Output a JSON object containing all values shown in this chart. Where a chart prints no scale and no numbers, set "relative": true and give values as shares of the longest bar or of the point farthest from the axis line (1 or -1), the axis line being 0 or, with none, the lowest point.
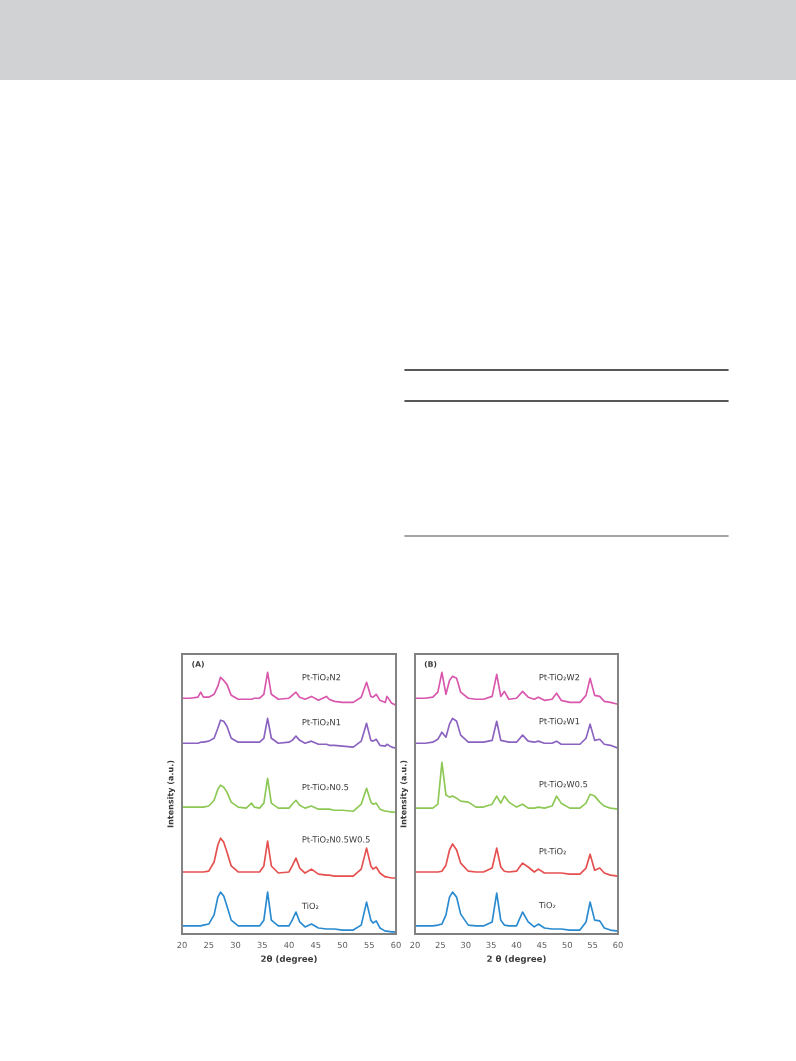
{
  "chart_data": [
    {
      "type": "line",
      "title": "(A)",
      "xlabel": "2θ (degree)",
      "ylabel": "Intensity (a.u.)",
      "relative": true,
      "x": [
        20,
        21.5,
        23,
        23.5,
        24,
        25,
        26,
        26.7,
        27.2,
        27.8,
        28.4,
        29.2,
        30.5,
        32,
        33,
        33.5,
        34.5,
        35.3,
        36,
        36.7,
        38,
        40,
        40.6,
        41.3,
        42,
        43,
        44.2,
        45.5,
        47,
        47.5,
        48.5,
        50,
        52,
        53.5,
        54.5,
        55.3,
        55.7,
        56.3,
        57,
        58,
        58.3,
        59.2,
        60
      ],
      "xlim": [
        20,
        60
      ],
      "xticks": [
        20,
        25,
        30,
        35,
        40,
        45,
        50,
        55,
        60
      ],
      "series": [
        {
          "name": "Pt-TiO₂N2",
          "color": "#d857ad",
          "values": [
            0.901,
            0.901,
            0.905,
            0.924,
            0.905,
            0.905,
            0.916,
            0.947,
            0.981,
            0.969,
            0.954,
            0.912,
            0.897,
            0.897,
            0.897,
            0.901,
            0.901,
            0.916,
            1.0,
            0.916,
            0.897,
            0.901,
            0.912,
            0.924,
            0.905,
            0.897,
            0.908,
            0.893,
            0.908,
            0.897,
            0.889,
            0.885,
            0.885,
            0.905,
            0.962,
            0.908,
            0.905,
            0.916,
            0.893,
            0.885,
            0.908,
            0.882,
            0.874
          ]
        },
        {
          "name": "Pt-TiO₂N1",
          "color": "#8b62c0",
          "values": [
            0.729,
            0.729,
            0.729,
            0.733,
            0.733,
            0.737,
            0.748,
            0.786,
            0.817,
            0.813,
            0.794,
            0.748,
            0.733,
            0.733,
            0.733,
            0.733,
            0.733,
            0.748,
            0.824,
            0.748,
            0.729,
            0.733,
            0.74,
            0.756,
            0.74,
            0.729,
            0.737,
            0.725,
            0.725,
            0.721,
            0.721,
            0.718,
            0.714,
            0.737,
            0.805,
            0.74,
            0.737,
            0.744,
            0.721,
            0.718,
            0.725,
            0.714,
            0.71
          ]
        },
        {
          "name": "Pt-TiO₂N0.5",
          "color": "#8dc855",
          "values": [
            0.485,
            0.485,
            0.485,
            0.485,
            0.485,
            0.489,
            0.511,
            0.553,
            0.569,
            0.561,
            0.542,
            0.504,
            0.485,
            0.481,
            0.5,
            0.485,
            0.481,
            0.5,
            0.595,
            0.5,
            0.481,
            0.481,
            0.496,
            0.511,
            0.492,
            0.481,
            0.489,
            0.477,
            0.477,
            0.477,
            0.473,
            0.473,
            0.469,
            0.496,
            0.557,
            0.504,
            0.496,
            0.5,
            0.477,
            0.469,
            0.469,
            0.466,
            0.466
          ]
        },
        {
          "name": "Pt-TiO₂N0.5W0.5",
          "color": "#e5504f",
          "values": [
            0.237,
            0.237,
            0.237,
            0.237,
            0.237,
            0.24,
            0.275,
            0.34,
            0.366,
            0.351,
            0.313,
            0.26,
            0.237,
            0.237,
            0.237,
            0.237,
            0.237,
            0.26,
            0.355,
            0.26,
            0.233,
            0.237,
            0.26,
            0.29,
            0.252,
            0.233,
            0.248,
            0.229,
            0.225,
            0.225,
            0.221,
            0.221,
            0.221,
            0.248,
            0.328,
            0.26,
            0.248,
            0.256,
            0.233,
            0.218,
            0.218,
            0.214,
            0.214
          ]
        },
        {
          "name": "TiO₂",
          "color": "#2a8ad0",
          "values": [
            0.031,
            0.031,
            0.031,
            0.031,
            0.034,
            0.038,
            0.073,
            0.141,
            0.16,
            0.145,
            0.107,
            0.053,
            0.031,
            0.031,
            0.031,
            0.031,
            0.031,
            0.053,
            0.16,
            0.053,
            0.031,
            0.031,
            0.053,
            0.084,
            0.046,
            0.027,
            0.038,
            0.023,
            0.019,
            0.019,
            0.019,
            0.015,
            0.015,
            0.034,
            0.122,
            0.053,
            0.042,
            0.05,
            0.023,
            0.011,
            0.011,
            0.008,
            0.008
          ]
        }
      ]
    },
    {
      "type": "line",
      "title": "(B)",
      "xlabel": "2 θ (degree)",
      "ylabel": "Intensity (a.u.)",
      "relative": true,
      "x": [
        20,
        22,
        23.5,
        24.5,
        25.3,
        26.1,
        26.8,
        27.4,
        28.2,
        29,
        30.5,
        32,
        33.5,
        35.2,
        36.1,
        36.9,
        37.6,
        38.5,
        40,
        41.2,
        42.3,
        43.5,
        44.3,
        45.5,
        47,
        47.9,
        48.8,
        50.5,
        52.5,
        53.7,
        54.5,
        55.4,
        56.4,
        57.3,
        58.5,
        60
      ],
      "xlim": [
        20,
        60
      ],
      "xticks": [
        20,
        25,
        30,
        35,
        40,
        45,
        50,
        55,
        60
      ],
      "series": [
        {
          "name": "Pt-TiO₂W2",
          "color": "#d857ad",
          "values": [
            0.901,
            0.901,
            0.905,
            0.924,
            1.0,
            0.916,
            0.969,
            0.985,
            0.977,
            0.924,
            0.901,
            0.897,
            0.897,
            0.908,
            0.992,
            0.908,
            0.927,
            0.897,
            0.901,
            0.927,
            0.905,
            0.897,
            0.905,
            0.893,
            0.897,
            0.92,
            0.893,
            0.885,
            0.885,
            0.912,
            0.977,
            0.912,
            0.908,
            0.889,
            0.885,
            0.878
          ]
        },
        {
          "name": "Pt-TiO₂W1",
          "color": "#8b62c0",
          "values": [
            0.729,
            0.729,
            0.733,
            0.744,
            0.771,
            0.752,
            0.802,
            0.824,
            0.813,
            0.76,
            0.733,
            0.733,
            0.733,
            0.74,
            0.813,
            0.74,
            0.737,
            0.733,
            0.733,
            0.76,
            0.737,
            0.733,
            0.737,
            0.729,
            0.729,
            0.737,
            0.725,
            0.725,
            0.725,
            0.748,
            0.802,
            0.74,
            0.744,
            0.725,
            0.721,
            0.71
          ]
        },
        {
          "name": "Pt-TiO₂W0.5",
          "color": "#8dc855",
          "values": [
            0.481,
            0.481,
            0.481,
            0.496,
            0.656,
            0.531,
            0.523,
            0.527,
            0.519,
            0.508,
            0.504,
            0.485,
            0.485,
            0.496,
            0.527,
            0.5,
            0.527,
            0.504,
            0.485,
            0.496,
            0.481,
            0.481,
            0.485,
            0.481,
            0.489,
            0.527,
            0.5,
            0.481,
            0.481,
            0.5,
            0.534,
            0.527,
            0.504,
            0.489,
            0.481,
            0.477
          ]
        },
        {
          "name": "Pt-TiO₂",
          "color": "#e5504f",
          "values": [
            0.237,
            0.237,
            0.237,
            0.237,
            0.24,
            0.263,
            0.321,
            0.344,
            0.321,
            0.271,
            0.24,
            0.237,
            0.237,
            0.252,
            0.328,
            0.256,
            0.24,
            0.237,
            0.24,
            0.271,
            0.256,
            0.237,
            0.248,
            0.233,
            0.233,
            0.233,
            0.233,
            0.229,
            0.229,
            0.252,
            0.305,
            0.244,
            0.252,
            0.233,
            0.225,
            0.221
          ]
        },
        {
          "name": "TiO₂",
          "color": "#2a8ad0",
          "values": [
            0.031,
            0.031,
            0.031,
            0.034,
            0.038,
            0.073,
            0.141,
            0.16,
            0.141,
            0.076,
            0.034,
            0.031,
            0.031,
            0.046,
            0.156,
            0.053,
            0.034,
            0.031,
            0.031,
            0.084,
            0.046,
            0.027,
            0.038,
            0.023,
            0.019,
            0.019,
            0.019,
            0.015,
            0.015,
            0.046,
            0.122,
            0.053,
            0.05,
            0.023,
            0.015,
            0.011
          ]
        }
      ]
    }
  ]
}
